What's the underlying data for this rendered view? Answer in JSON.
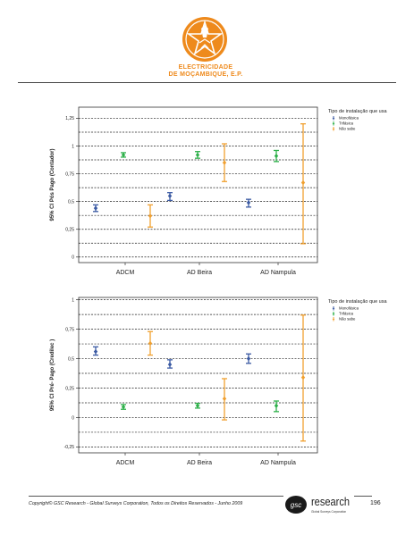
{
  "header": {
    "company_line1": "ELECTRICIDADE",
    "company_line2": "DE MOÇAMBIQUE, E.P."
  },
  "colors": {
    "brand_orange": "#ee8a1c",
    "monofasica": "#3b5aa3",
    "trifasica": "#2eb04a",
    "nao_sabe": "#f0a030"
  },
  "chart_data": [
    {
      "type": "scatter",
      "ylabel": "95% CI Pós Pago (Contador)",
      "ylim": [
        -0.05,
        1.35
      ],
      "yticks": [
        0,
        0.25,
        0.5,
        0.75,
        1,
        1.25
      ],
      "ytick_labels": [
        "0",
        "0,25",
        "0,5",
        "0,75",
        "1",
        "1,25"
      ],
      "gridlines": [
        0,
        0.125,
        0.25,
        0.375,
        0.5,
        0.625,
        0.75,
        0.875,
        1,
        1.125,
        1.25
      ],
      "categories": [
        "ADCM",
        "AD Beira",
        "AD Nampula"
      ],
      "legend_title": "Tipo de instalação que usa",
      "legend_position": "top-right",
      "series": [
        {
          "name": "Monofásica",
          "color": "#3b5aa3",
          "mean": [
            0.44,
            0.55,
            0.49
          ],
          "lower": [
            0.41,
            0.51,
            0.45
          ],
          "upper": [
            0.47,
            0.58,
            0.52
          ]
        },
        {
          "name": "Trifásica",
          "color": "#2eb04a",
          "mean": [
            0.92,
            0.92,
            0.91
          ],
          "lower": [
            0.9,
            0.89,
            0.86
          ],
          "upper": [
            0.94,
            0.95,
            0.96
          ]
        },
        {
          "name": "Não sabe",
          "color": "#f0a030",
          "mean": [
            0.37,
            0.85,
            0.67
          ],
          "lower": [
            0.27,
            0.68,
            0.12
          ],
          "upper": [
            0.47,
            1.02,
            1.2
          ]
        }
      ]
    },
    {
      "type": "scatter",
      "ylabel": "95% CI Pré- Pago (Credilec )",
      "ylim": [
        -0.3,
        1.02
      ],
      "yticks": [
        -0.25,
        0,
        0.25,
        0.5,
        0.75,
        1
      ],
      "ytick_labels": [
        "-0,25",
        "0",
        "0,25",
        "0,5",
        "0,75",
        "1"
      ],
      "gridlines": [
        -0.25,
        -0.125,
        0,
        0.125,
        0.25,
        0.375,
        0.5,
        0.625,
        0.75,
        0.875,
        1
      ],
      "categories": [
        "ADCM",
        "AD Beira",
        "AD Nampula"
      ],
      "legend_title": "Tipo de instalação que usa",
      "legend_position": "top-right",
      "series": [
        {
          "name": "Monofásica",
          "color": "#3b5aa3",
          "mean": [
            0.56,
            0.45,
            0.5
          ],
          "lower": [
            0.53,
            0.42,
            0.46
          ],
          "upper": [
            0.6,
            0.49,
            0.54
          ]
        },
        {
          "name": "Trifásica",
          "color": "#2eb04a",
          "mean": [
            0.09,
            0.1,
            0.1
          ],
          "lower": [
            0.07,
            0.08,
            0.05
          ],
          "upper": [
            0.11,
            0.12,
            0.14
          ]
        },
        {
          "name": "Não sabe",
          "color": "#f0a030",
          "mean": [
            0.63,
            0.16,
            0.34
          ],
          "lower": [
            0.53,
            -0.02,
            -0.2
          ],
          "upper": [
            0.73,
            0.33,
            0.87
          ]
        }
      ]
    }
  ],
  "footer": {
    "copyright": "Copyright© GSC Research - Global Surveys Corporation, Todos os Direitos Reservados - Junho 2009",
    "brand_prefix": "gsc",
    "brand_word": "research",
    "brand_sub": "Global Surveys Corporation",
    "page_number": "196"
  }
}
